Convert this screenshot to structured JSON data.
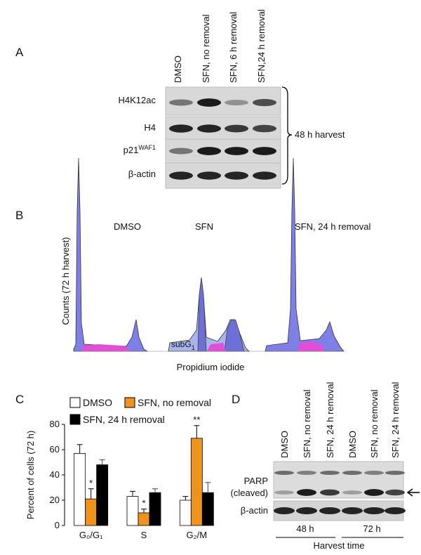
{
  "panel_a": {
    "label": "A",
    "lanes": [
      "DMSO",
      "SFN, no removal",
      "SFN, 6 h removal",
      "SFN,24 h removal"
    ],
    "rows": [
      {
        "text": "H4K12ac"
      },
      {
        "text": "H4"
      },
      {
        "text": "p21",
        "sup": "WAF1"
      },
      {
        "text": "β-actin"
      }
    ],
    "bracket_label": "48 h harvest"
  },
  "panel_b": {
    "label": "B",
    "ylabel": "Counts (72 h harvest)",
    "xlabel": "Propidium iodide",
    "titles": [
      "DMSO",
      "SFN",
      "SFN, 24 h removal"
    ],
    "subg": {
      "text": "subG",
      "sub": "1"
    }
  },
  "panel_c": {
    "label": "C"
  },
  "chart_data": {
    "type": "bar",
    "ylabel": "Percent of cells (72 h)",
    "categories": [
      "G₀/G₁",
      "S",
      "G₂/M"
    ],
    "series": [
      {
        "name": "DMSO",
        "color": "#ffffff",
        "values": [
          57,
          23,
          20
        ],
        "errors": [
          7,
          4,
          3
        ]
      },
      {
        "name": "SFN, no removal",
        "color": "#f0931c",
        "values": [
          21,
          10,
          69
        ],
        "errors": [
          8,
          3,
          10
        ],
        "markers": [
          "*",
          "*",
          "**"
        ]
      },
      {
        "name": "SFN, 24 h removal",
        "color": "#000000",
        "values": [
          48,
          26,
          26
        ],
        "errors": [
          4,
          3,
          8
        ]
      }
    ],
    "ylim": [
      0,
      80
    ],
    "yticks": [
      0,
      20,
      40,
      60,
      80
    ]
  },
  "panel_d": {
    "label": "D",
    "lanes": [
      "DMSO",
      "SFN, no removal",
      "SFN, 24 h removal",
      "DMSO",
      "SFN, no removal",
      "SFN, 24 h removal"
    ],
    "rows": [
      {
        "text": "PARP"
      },
      {
        "text": "(cleaved)"
      },
      {
        "text": "β-actin"
      }
    ],
    "groups": [
      "48 h",
      "72 h"
    ],
    "group_label": "Harvest time"
  }
}
